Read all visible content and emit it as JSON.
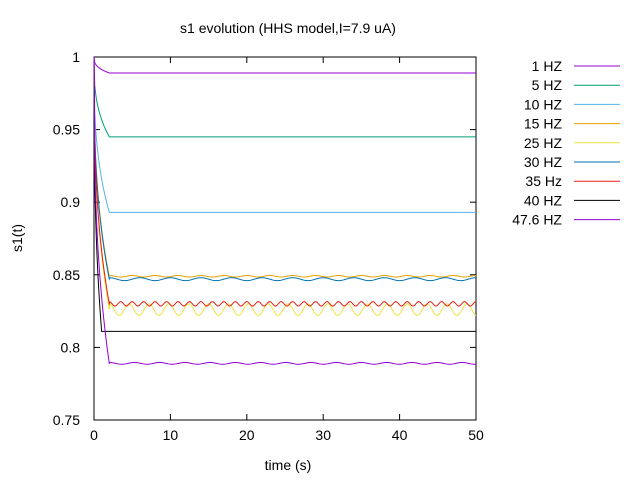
{
  "chart_data": {
    "type": "line",
    "title": "s1 evolution (HHS model,I=7.9 uA)",
    "xlabel": "time (s)",
    "ylabel": "s1(t)",
    "xlim": [
      0,
      50
    ],
    "ylim": [
      0.75,
      1
    ],
    "x_ticks": [
      "0",
      "10",
      "20",
      "30",
      "40",
      "50"
    ],
    "y_ticks": [
      "0.75",
      "0.8",
      "0.85",
      "0.9",
      "0.95",
      "1"
    ],
    "grid": false,
    "legend_position": "outside-right",
    "series": [
      {
        "name": "1 HZ",
        "color": "#9400d3",
        "steady": 0.989,
        "osc_amp": 0.0,
        "osc_period": 0,
        "settle": 2.0
      },
      {
        "name": "5 HZ",
        "color": "#009e73",
        "steady": 0.945,
        "osc_amp": 0.0,
        "osc_period": 0,
        "settle": 2.0
      },
      {
        "name": "10 HZ",
        "color": "#56b4e9",
        "steady": 0.893,
        "osc_amp": 0.0,
        "osc_period": 0,
        "settle": 2.0
      },
      {
        "name": "15 HZ",
        "color": "#e69f00",
        "steady": 0.849,
        "osc_amp": 0.0005,
        "osc_period": 3.0,
        "settle": 2.0
      },
      {
        "name": "25 HZ",
        "color": "#f0e442",
        "steady": 0.826,
        "osc_amp": 0.004,
        "osc_period": 2.6,
        "settle": 2.0
      },
      {
        "name": "30 HZ",
        "color": "#0072b2",
        "steady": 0.847,
        "osc_amp": 0.001,
        "osc_period": 4.0,
        "settle": 2.0
      },
      {
        "name": "35 Hz",
        "color": "#e51e10",
        "steady": 0.83,
        "osc_amp": 0.0015,
        "osc_period": 1.5,
        "settle": 2.0
      },
      {
        "name": "40 HZ",
        "color": "#000000",
        "steady": 0.811,
        "osc_amp": 0.0,
        "osc_period": 0,
        "settle": 1.0
      },
      {
        "name": "47.6 HZ",
        "color": "#9400d3",
        "steady": 0.789,
        "osc_amp": 0.0006,
        "osc_period": 3.3,
        "settle": 2.0
      }
    ]
  }
}
